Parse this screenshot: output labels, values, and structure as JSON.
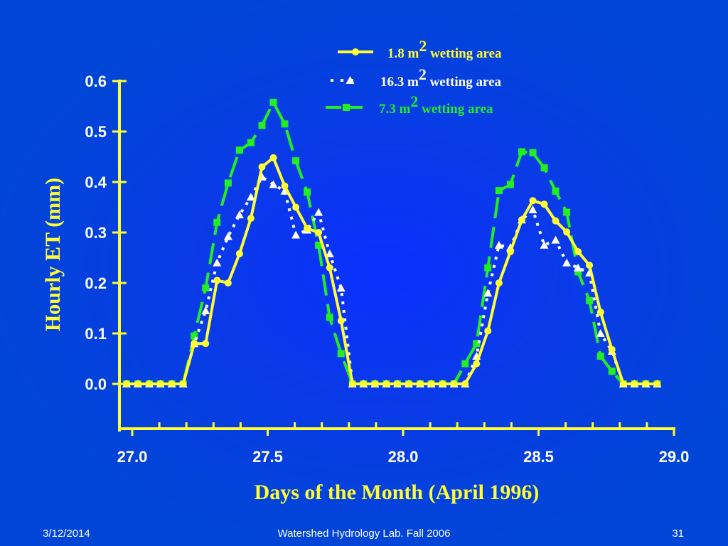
{
  "colors": {
    "background": "#0046d6",
    "axis": "#ffff33",
    "series_1": "#ffff33",
    "series_2": "#ffffff",
    "series_3": "#22ee22",
    "footer_text": "#ffffff"
  },
  "footer": {
    "date": "3/12/2014",
    "center": "Watershed Hydrology Lab. Fall 2006",
    "page": "31"
  },
  "legend": {
    "entries": [
      {
        "name_prefix": "1.8 m",
        "superscript": "2",
        "name_suffix": " wetting area",
        "marker": "circle",
        "color": "#ffff33",
        "line": "solid"
      },
      {
        "name_prefix": "16.3 m",
        "superscript": "2",
        "name_suffix": " wetting area",
        "marker": "triangle",
        "color": "#ffffff",
        "line": "dotted"
      },
      {
        "name_prefix": "7.3 m",
        "superscript": "2",
        "name_suffix": " wetting area",
        "marker": "square",
        "color": "#22ee22",
        "line": "dashed"
      }
    ]
  },
  "chart_data": {
    "type": "line",
    "title": "",
    "xlabel": "Days of the Month (April 1996)",
    "ylabel": "Hourly ET (mm)",
    "xlim": [
      27.0,
      29.0
    ],
    "ylim": [
      -0.09,
      0.6
    ],
    "x_ticks": [
      "27.0",
      "27.5",
      "28.0",
      "28.5",
      "29.0"
    ],
    "y_ticks": [
      "0.6",
      "0.5",
      "0.4",
      "0.3",
      "0.2",
      "0.1",
      "0.0"
    ],
    "grid": false,
    "legend_position": "top-right",
    "series": [
      {
        "name": "1.8 m2 wetting area",
        "marker": "circle",
        "color": "#ffff33",
        "x": [
          26.979,
          27.021,
          27.063,
          27.104,
          27.146,
          27.188,
          27.229,
          27.271,
          27.313,
          27.354,
          27.396,
          27.438,
          27.479,
          27.521,
          27.563,
          27.604,
          27.646,
          27.688,
          27.729,
          27.771,
          27.813,
          27.854,
          27.896,
          27.938,
          27.979,
          28.021,
          28.063,
          28.104,
          28.146,
          28.188,
          28.229,
          28.271,
          28.313,
          28.354,
          28.396,
          28.438,
          28.479,
          28.521,
          28.563,
          28.604,
          28.646,
          28.688,
          28.729,
          28.771,
          28.813,
          28.854,
          28.896,
          28.938
        ],
        "y": [
          0.0,
          0.0,
          0.0,
          0.0,
          0.0,
          0.0,
          0.08,
          0.08,
          0.205,
          0.2,
          0.258,
          0.328,
          0.43,
          0.448,
          0.392,
          0.35,
          0.308,
          0.3,
          0.23,
          0.125,
          0.0,
          0.0,
          0.0,
          0.0,
          0.0,
          0.0,
          0.0,
          0.0,
          0.0,
          0.0,
          0.0,
          0.04,
          0.105,
          0.2,
          0.262,
          0.325,
          0.363,
          0.356,
          0.323,
          0.301,
          0.262,
          0.235,
          0.142,
          0.068,
          0.0,
          0.0,
          0.0,
          0.0
        ]
      },
      {
        "name": "16.3 m2 wetting area",
        "marker": "triangle",
        "color": "#ffffff",
        "x": [
          26.979,
          27.021,
          27.063,
          27.104,
          27.146,
          27.188,
          27.229,
          27.271,
          27.313,
          27.354,
          27.396,
          27.438,
          27.479,
          27.521,
          27.563,
          27.604,
          27.646,
          27.688,
          27.729,
          27.771,
          27.813,
          27.854,
          27.896,
          27.938,
          27.979,
          28.021,
          28.063,
          28.104,
          28.146,
          28.188,
          28.229,
          28.271,
          28.313,
          28.354,
          28.396,
          28.438,
          28.479,
          28.521,
          28.563,
          28.604,
          28.646,
          28.688,
          28.729,
          28.771,
          28.813,
          28.854,
          28.896,
          28.938
        ],
        "y": [
          0.0,
          0.0,
          0.0,
          0.0,
          0.0,
          0.0,
          0.08,
          0.145,
          0.24,
          0.292,
          0.335,
          0.37,
          0.41,
          0.395,
          0.382,
          0.295,
          0.305,
          0.34,
          0.258,
          0.19,
          0.0,
          0.0,
          0.0,
          0.0,
          0.0,
          0.0,
          0.0,
          0.0,
          0.0,
          0.0,
          0.0,
          0.055,
          0.18,
          0.275,
          0.27,
          0.325,
          0.345,
          0.275,
          0.285,
          0.24,
          0.23,
          0.22,
          0.1,
          0.065,
          0.0,
          0.0,
          0.0,
          0.0
        ]
      },
      {
        "name": "7.3 m2 wetting area",
        "marker": "square",
        "color": "#22ee22",
        "x": [
          26.979,
          27.021,
          27.063,
          27.104,
          27.146,
          27.188,
          27.229,
          27.271,
          27.313,
          27.354,
          27.396,
          27.438,
          27.479,
          27.521,
          27.563,
          27.604,
          27.646,
          27.688,
          27.729,
          27.771,
          27.813,
          27.854,
          27.896,
          27.938,
          27.979,
          28.021,
          28.063,
          28.104,
          28.146,
          28.188,
          28.229,
          28.271,
          28.313,
          28.354,
          28.396,
          28.438,
          28.479,
          28.521,
          28.563,
          28.604,
          28.646,
          28.688,
          28.729,
          28.771,
          28.813,
          28.854,
          28.896,
          28.938
        ],
        "y": [
          0.0,
          0.0,
          0.0,
          0.0,
          0.0,
          0.0,
          0.095,
          0.19,
          0.32,
          0.398,
          0.463,
          0.478,
          0.512,
          0.558,
          0.515,
          0.442,
          0.38,
          0.275,
          0.132,
          0.06,
          0.0,
          0.0,
          0.0,
          0.0,
          0.0,
          0.0,
          0.0,
          0.0,
          0.0,
          0.0,
          0.04,
          0.08,
          0.23,
          0.383,
          0.395,
          0.46,
          0.458,
          0.428,
          0.382,
          0.34,
          0.222,
          0.165,
          0.055,
          0.025,
          0.0,
          0.0,
          0.0,
          0.0
        ]
      }
    ]
  }
}
